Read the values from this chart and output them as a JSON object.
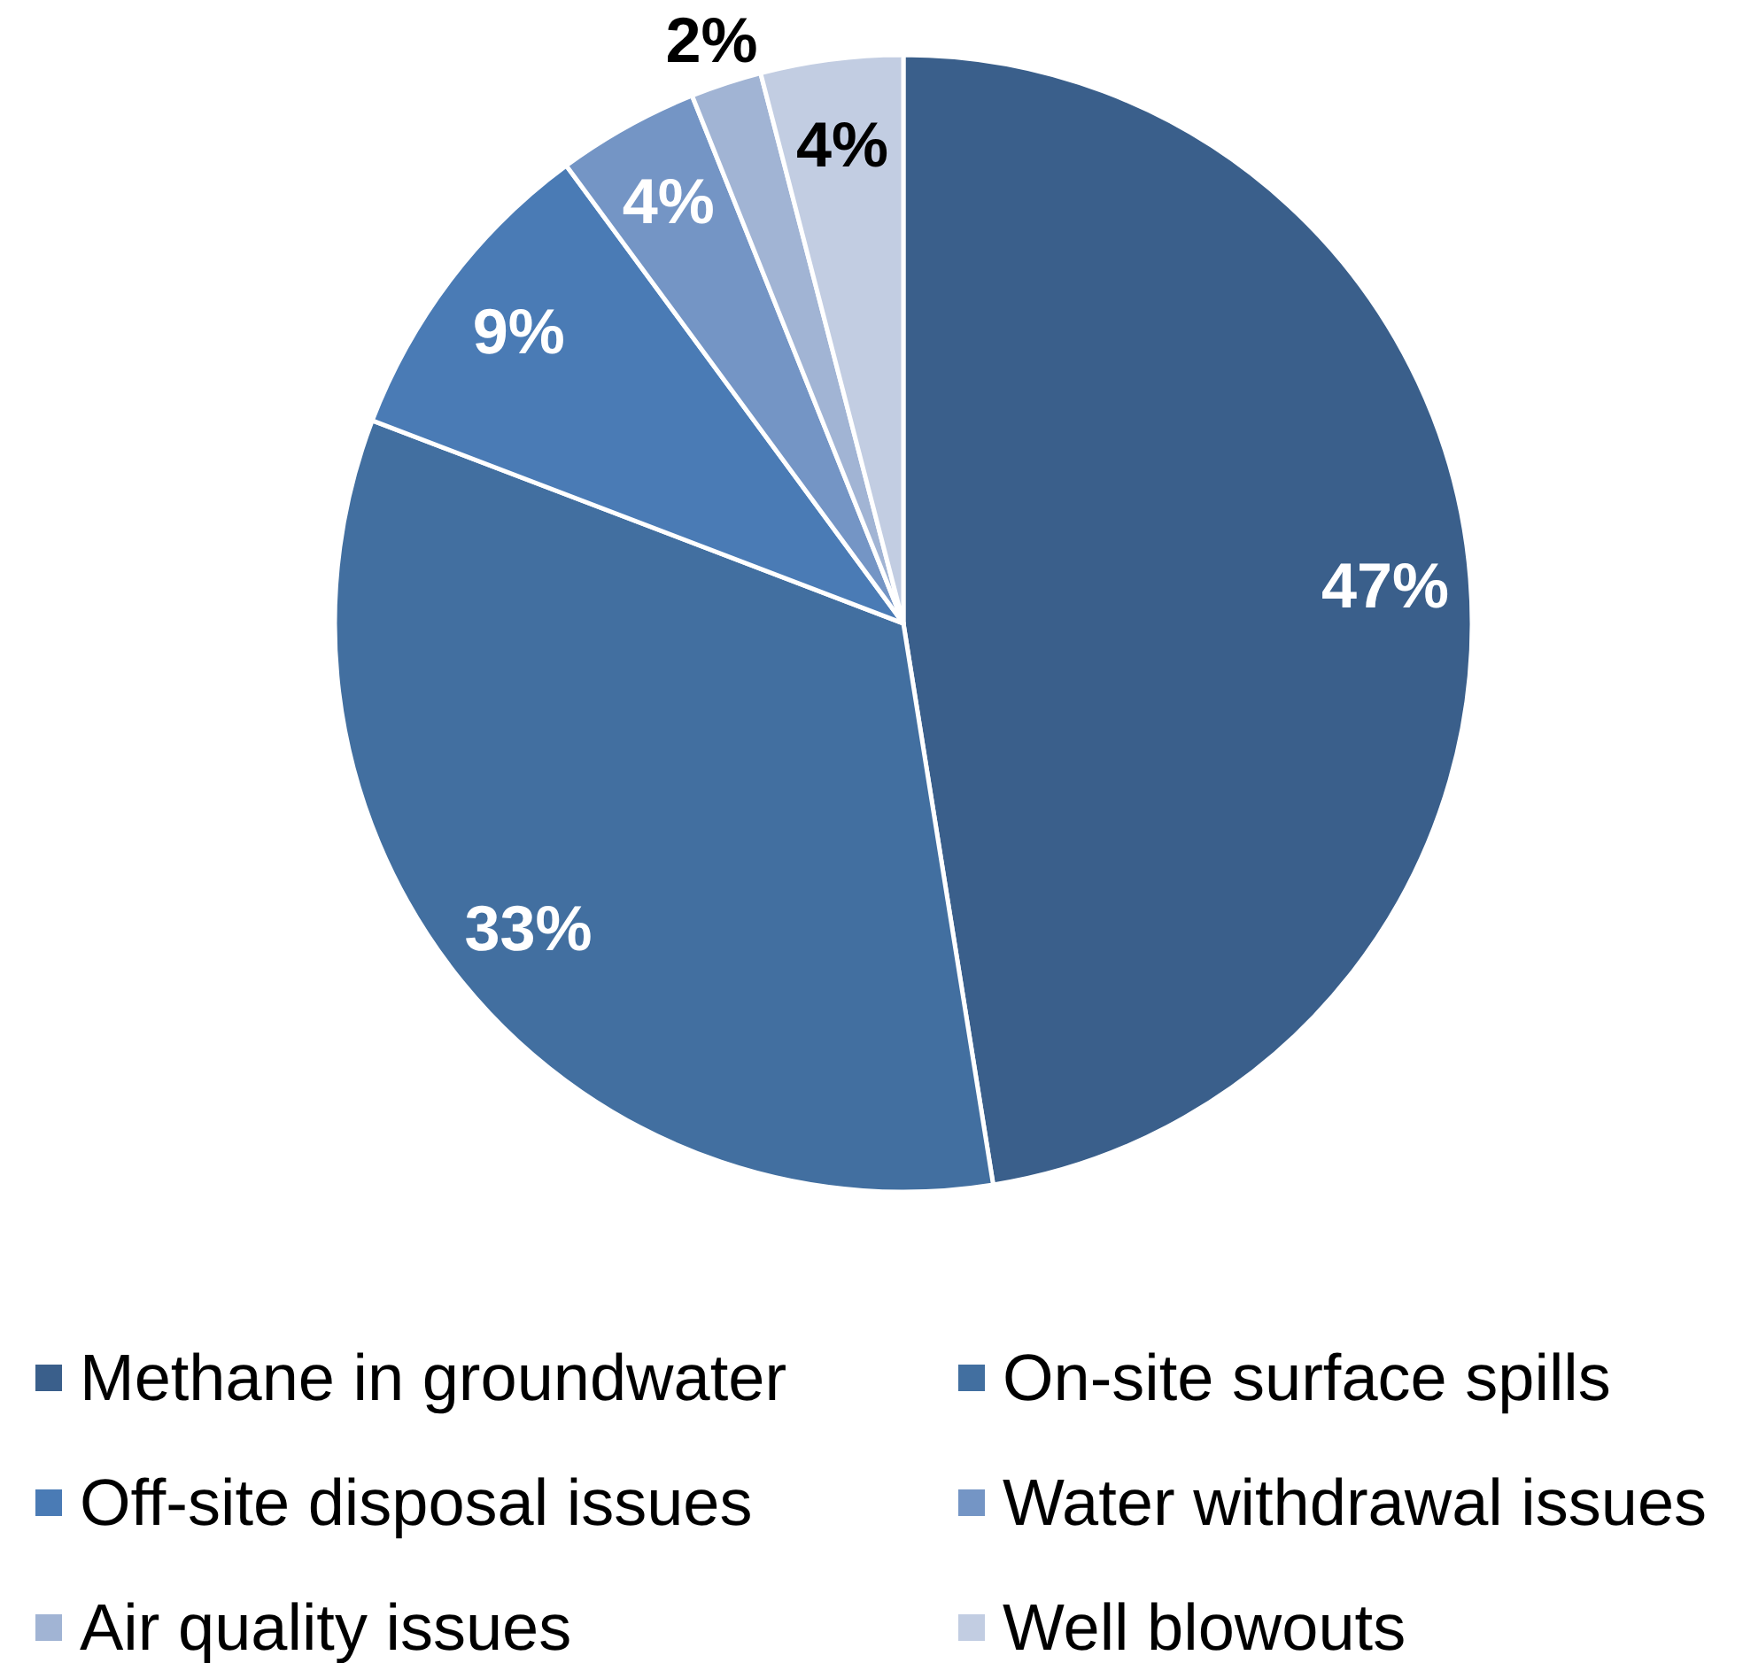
{
  "chart_data": {
    "type": "pie",
    "categories": [
      "Methane in groundwater",
      "On-site surface spills",
      "Off-site disposal issues",
      "Water withdrawal issues",
      "Air quality issues",
      "Well blowouts"
    ],
    "values": [
      47,
      33,
      9,
      4,
      2,
      4
    ],
    "value_labels": [
      "47%",
      "33%",
      "9%",
      "4%",
      "2%",
      "4%"
    ],
    "colors": [
      "#3a5f8b",
      "#426fa0",
      "#4a7bb5",
      "#7495c5",
      "#a1b4d4",
      "#c2cde2"
    ],
    "legend": "bottom"
  }
}
